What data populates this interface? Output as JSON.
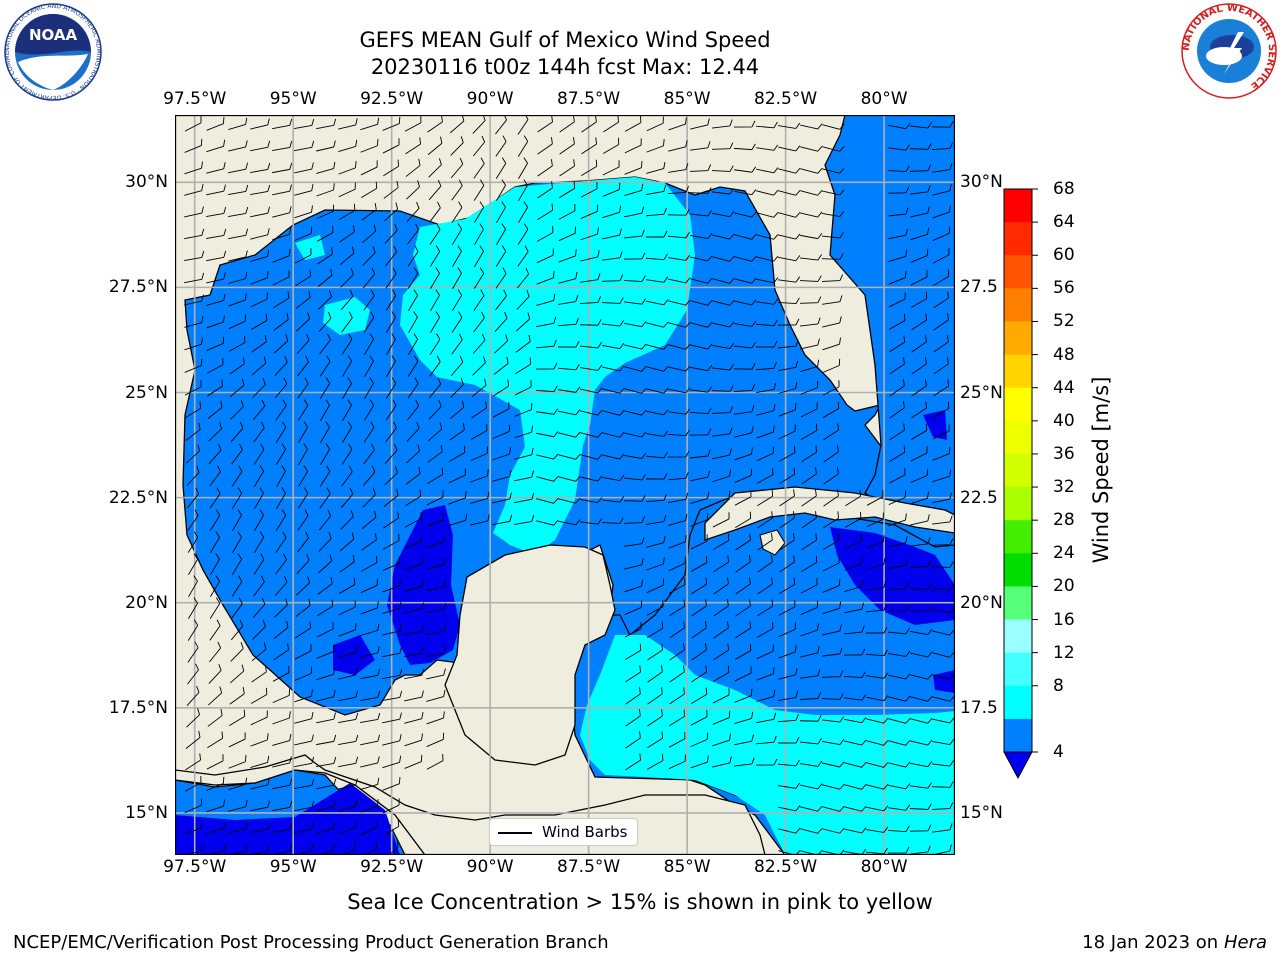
{
  "title": {
    "line1": "GEFS MEAN Gulf of Mexico Wind Speed",
    "line2": "20230116 t00z 144h fcst   Max: 12.44"
  },
  "axes": {
    "lon_labels": [
      "97.5°W",
      "95°W",
      "92.5°W",
      "90°W",
      "87.5°W",
      "85°W",
      "82.5°W",
      "80°W"
    ],
    "lon_values": [
      -97.5,
      -95,
      -92.5,
      -90,
      -87.5,
      -85,
      -82.5,
      -80
    ],
    "lat_labels_left": [
      "30°N",
      "27.5°N",
      "25°N",
      "22.5°N",
      "20°N",
      "17.5°N",
      "15°N"
    ],
    "lat_labels_right": [
      "30°N",
      "27.5",
      "25°N",
      "22.5",
      "20°N",
      "17.5",
      "15°N"
    ],
    "lat_values": [
      30,
      27.5,
      25,
      22.5,
      20,
      17.5,
      15
    ],
    "lon_range": [
      -98,
      -78.2
    ],
    "lat_range": [
      14,
      31.6
    ]
  },
  "colorbar": {
    "label": "Wind Speed [m/s]",
    "ticks": [
      "68",
      "64",
      "60",
      "56",
      "52",
      "48",
      "44",
      "40",
      "36",
      "32",
      "28",
      "24",
      "20",
      "16",
      "12",
      "8",
      "4"
    ],
    "colors": [
      "#ff0000",
      "#ff2a00",
      "#ff5500",
      "#ff8000",
      "#ffaa00",
      "#ffd400",
      "#ffff00",
      "#eeff00",
      "#d4ff00",
      "#aaff00",
      "#44ee00",
      "#00dd00",
      "#55ff77",
      "#99ffff",
      "#44ffff",
      "#00ffff",
      "#0080ff"
    ],
    "extend_color": "#0000ee"
  },
  "legend": {
    "label": "Wind Barbs"
  },
  "map_colors": {
    "land": "#efedde",
    "ocean_4_8": "#0080ff",
    "ocean_8_12": "#00ffff",
    "ocean_lt_4": "#0000ee",
    "grid": "#b0b0b0"
  },
  "note": "Sea Ice Concentration > 15% is shown in pink to yellow",
  "footer": {
    "left": "NCEP/EMC/Verification Post Processing Product Generation Branch",
    "right_prefix": "18 Jan 2023 on ",
    "right_host": "Hera"
  },
  "logos": {
    "noaa_text": "NOAA",
    "noaa_ring": "NATIONAL OCEANIC AND ATMOSPHERIC ADMINISTRATION · U.S. DEPARTMENT OF COMMERCE",
    "nws_ring": "NATIONAL WEATHER SERVICE"
  }
}
